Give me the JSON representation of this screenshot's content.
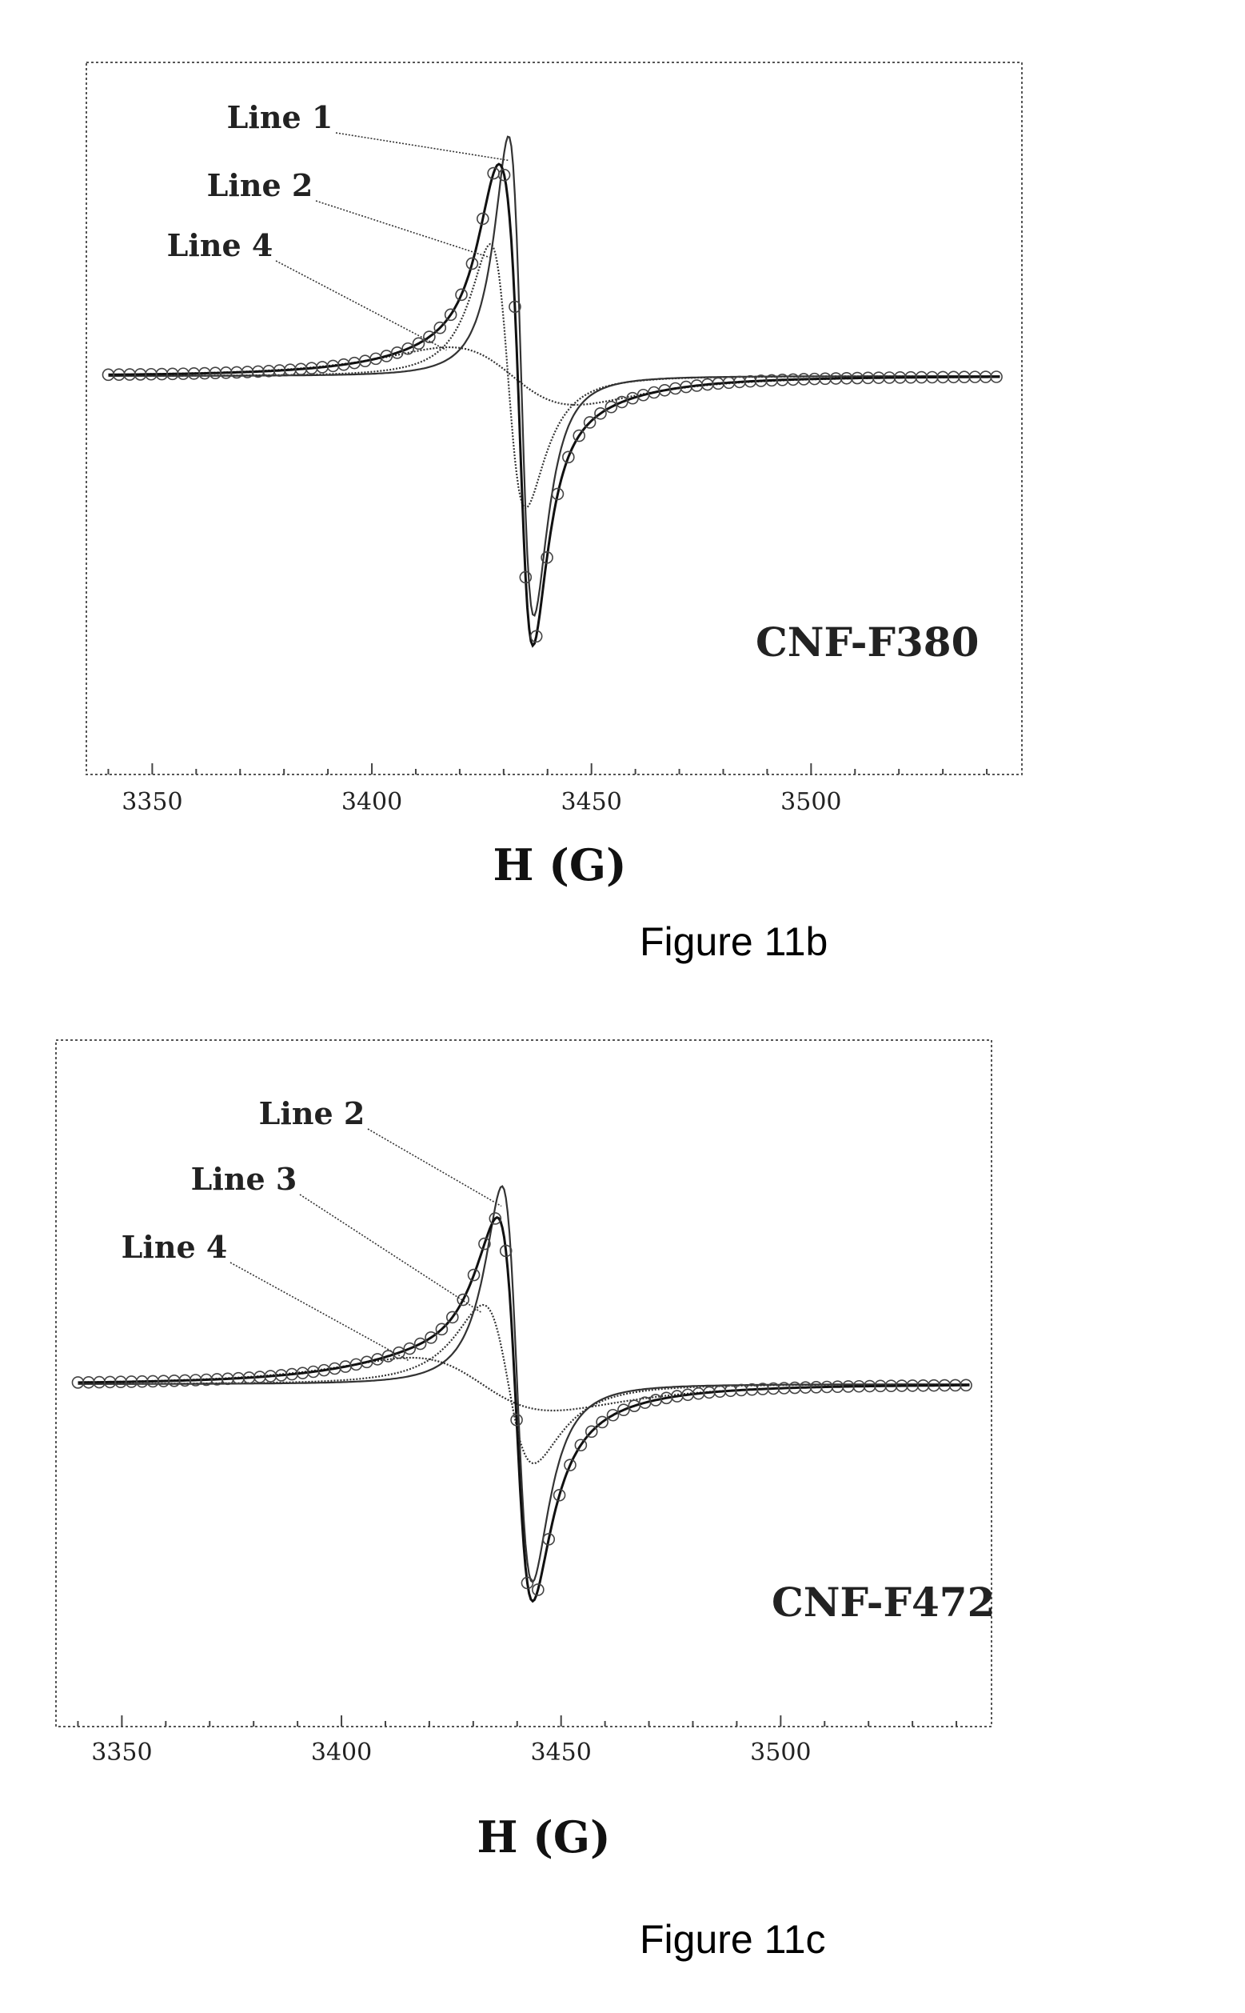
{
  "chart_data": [
    {
      "type": "line",
      "figure_caption": "Figure 11b",
      "sample_label": "CNF-F380",
      "xlabel": "H (G)",
      "ylabel": "",
      "xlim": [
        3335,
        3548
      ],
      "x_ticks": [
        3350,
        3400,
        3450,
        3500
      ],
      "grid": false,
      "legend": "none",
      "series": [
        {
          "name": "Line 1",
          "center": 3434,
          "width": 5,
          "amplitude": 1.0
        },
        {
          "name": "Line 2",
          "center": 3431,
          "width": 7,
          "amplitude": 0.55
        },
        {
          "name": "Line 4",
          "center": 3432,
          "width": 25,
          "amplitude": 0.12
        }
      ],
      "observed_points": "open circles along the total fitted spectrum"
    },
    {
      "type": "line",
      "figure_caption": "Figure 11c",
      "sample_label": "CNF-F472",
      "xlabel": "H (G)",
      "ylabel": "",
      "xlim": [
        3335,
        3548
      ],
      "x_ticks": [
        3350,
        3400,
        3450,
        3500
      ],
      "grid": false,
      "legend": "none",
      "series": [
        {
          "name": "Line 2",
          "center": 3440,
          "width": 6,
          "amplitude": 0.75
        },
        {
          "name": "Line 3",
          "center": 3438,
          "width": 10,
          "amplitude": 0.3
        },
        {
          "name": "Line 4",
          "center": 3432,
          "width": 28,
          "amplitude": 0.1
        }
      ],
      "observed_points": "open circles along the total fitted spectrum"
    }
  ]
}
